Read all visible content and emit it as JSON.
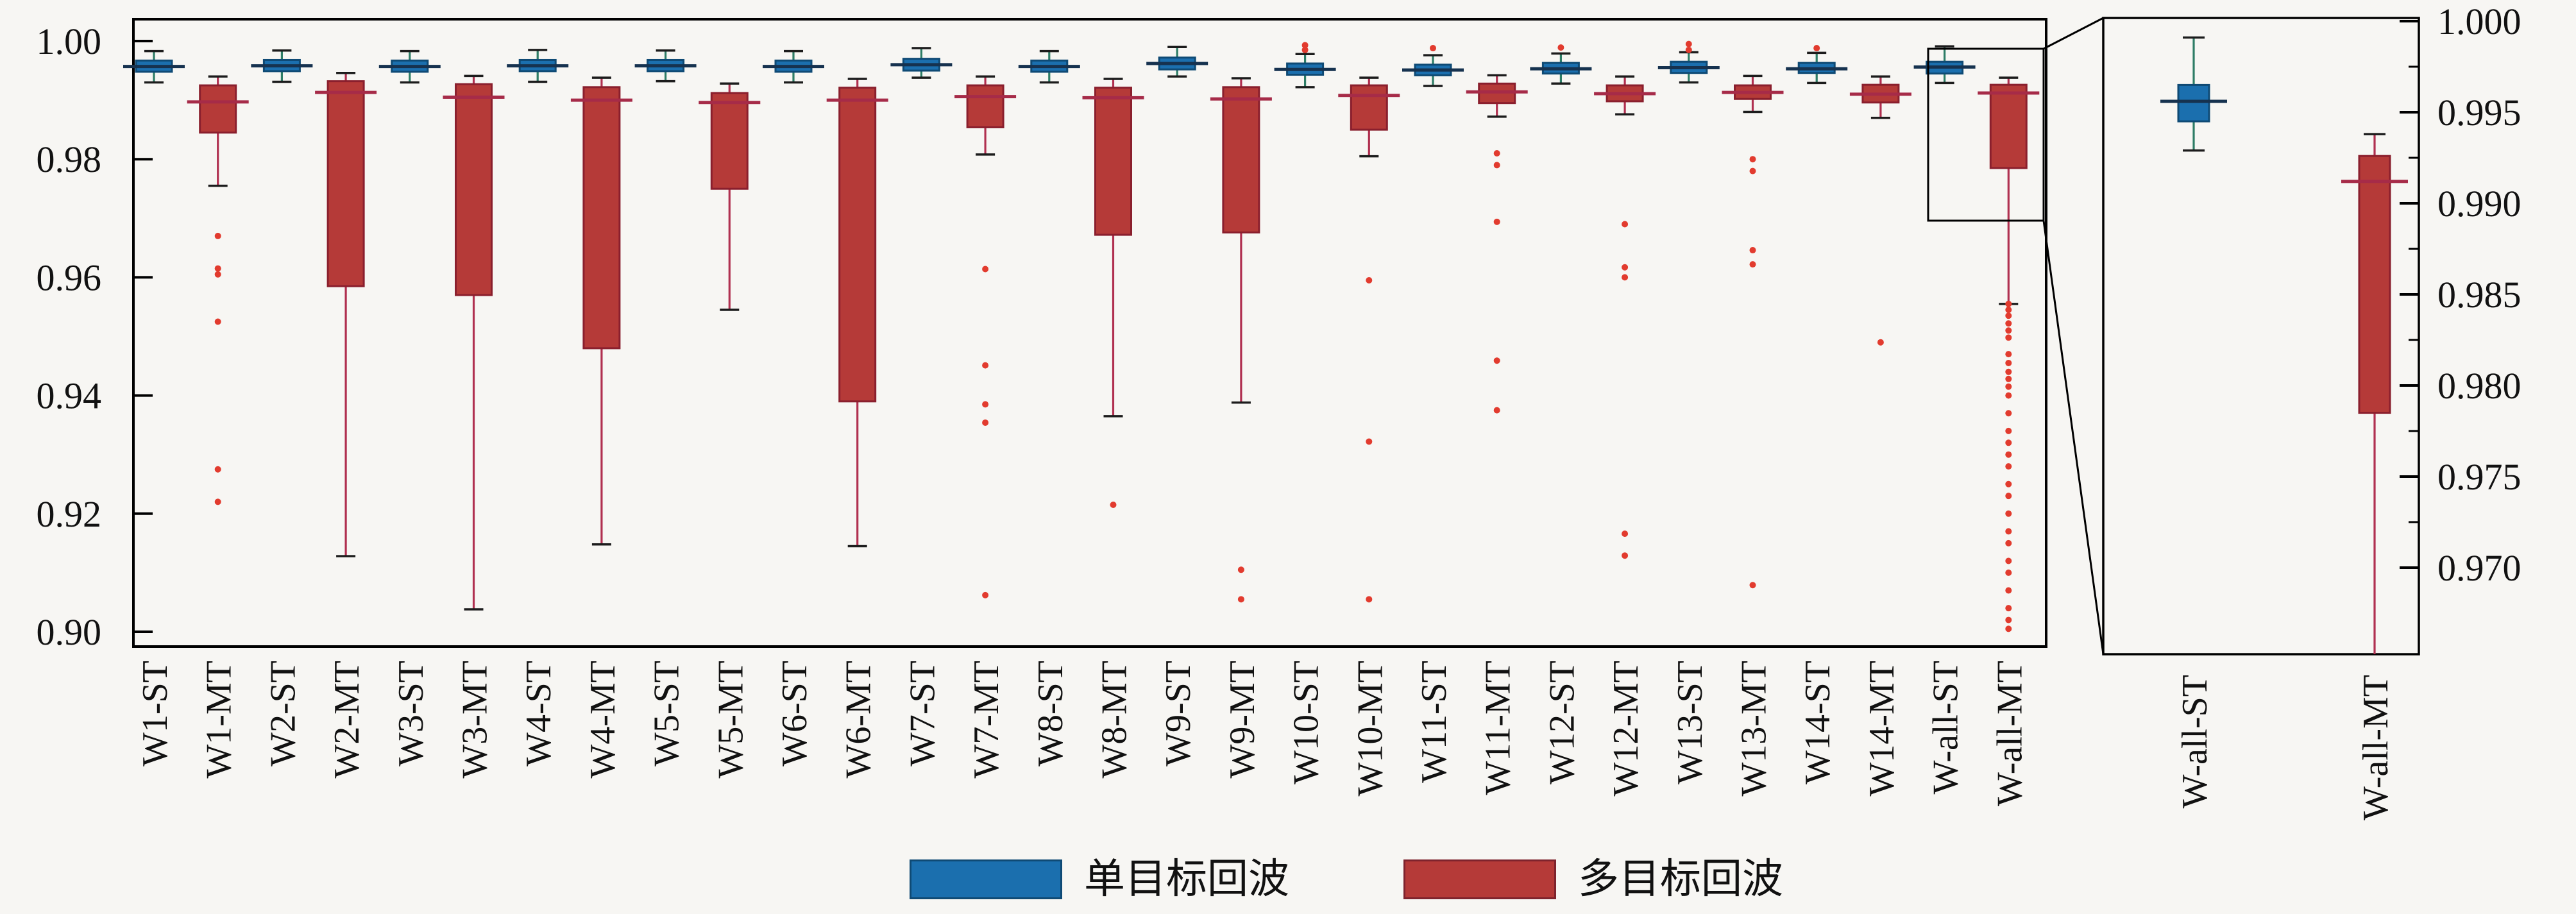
{
  "figure": {
    "background": "#f7f6f3",
    "frame_color": "#000000",
    "text_color": "#111111"
  },
  "legend": {
    "items": [
      {
        "id": "single-target",
        "label": "单目标回波",
        "fill": "#1b6fae",
        "edge": "#0f4a74"
      },
      {
        "id": "multi-target",
        "label": "多目标回波",
        "fill": "#b53a38",
        "edge": "#7e232d"
      }
    ]
  },
  "chart_data": {
    "type": "boxplot",
    "title": "",
    "xlabel": "",
    "ylabel": "",
    "grid": false,
    "legend_position": "bottom-center",
    "series_styles": {
      "ST": {
        "fill": "#1b6fae",
        "edge": "#0f4a74",
        "median": "#16324f",
        "whisker": "#2e7d66",
        "cap": "#1c1c1c",
        "flier": "#e23b2e"
      },
      "MT": {
        "fill": "#b53a38",
        "edge": "#8a1f2d",
        "median": "#a62b48",
        "whisker": "#b03050",
        "cap": "#1c1c1c",
        "flier": "#e23b2e"
      }
    },
    "main_axis": {
      "ylim": [
        0.8975,
        1.0037
      ],
      "yticks": [
        1.0,
        0.98,
        0.96,
        0.94,
        0.92,
        0.9
      ],
      "ytick_labels": [
        "1.00",
        "0.98",
        "0.96",
        "0.94",
        "0.92",
        "0.90"
      ],
      "categories": [
        "W1-ST",
        "W1-MT",
        "W2-ST",
        "W2-MT",
        "W3-ST",
        "W3-MT",
        "W4-ST",
        "W4-MT",
        "W5-ST",
        "W5-MT",
        "W6-ST",
        "W6-MT",
        "W7-ST",
        "W7-MT",
        "W8-ST",
        "W8-MT",
        "W9-ST",
        "W9-MT",
        "W10-ST",
        "W10-MT",
        "W11-ST",
        "W11-MT",
        "W12-ST",
        "W12-MT",
        "W13-ST",
        "W13-MT",
        "W14-ST",
        "W14-MT",
        "W-all-ST",
        "W-all-MT"
      ]
    },
    "boxes": [
      {
        "label": "W1-ST",
        "group": "ST",
        "whislo": 0.993,
        "q1": 0.9948,
        "med": 0.9957,
        "q3": 0.9967,
        "whishi": 0.9983,
        "fliers": []
      },
      {
        "label": "W1-MT",
        "group": "MT",
        "whislo": 0.9755,
        "q1": 0.9845,
        "med": 0.9897,
        "q3": 0.9925,
        "whishi": 0.994,
        "fliers": [
          0.967,
          0.9615,
          0.9605,
          0.9525,
          0.9275,
          0.922
        ]
      },
      {
        "label": "W2-ST",
        "group": "ST",
        "whislo": 0.9931,
        "q1": 0.9949,
        "med": 0.9958,
        "q3": 0.9968,
        "whishi": 0.9984,
        "fliers": []
      },
      {
        "label": "W2-MT",
        "group": "MT",
        "whislo": 0.9128,
        "q1": 0.9585,
        "med": 0.9913,
        "q3": 0.9932,
        "whishi": 0.9946,
        "fliers": []
      },
      {
        "label": "W3-ST",
        "group": "ST",
        "whislo": 0.993,
        "q1": 0.9948,
        "med": 0.9957,
        "q3": 0.9967,
        "whishi": 0.9983,
        "fliers": []
      },
      {
        "label": "W3-MT",
        "group": "MT",
        "whislo": 0.9038,
        "q1": 0.957,
        "med": 0.9905,
        "q3": 0.9927,
        "whishi": 0.9941,
        "fliers": []
      },
      {
        "label": "W4-ST",
        "group": "ST",
        "whislo": 0.9931,
        "q1": 0.9949,
        "med": 0.9958,
        "q3": 0.9968,
        "whishi": 0.9985,
        "fliers": []
      },
      {
        "label": "W4-MT",
        "group": "MT",
        "whislo": 0.9148,
        "q1": 0.948,
        "med": 0.99,
        "q3": 0.9922,
        "whishi": 0.9938,
        "fliers": []
      },
      {
        "label": "W5-ST",
        "group": "ST",
        "whislo": 0.9932,
        "q1": 0.9949,
        "med": 0.9958,
        "q3": 0.9968,
        "whishi": 0.9984,
        "fliers": []
      },
      {
        "label": "W5-MT",
        "group": "MT",
        "whislo": 0.9545,
        "q1": 0.975,
        "med": 0.9896,
        "q3": 0.9912,
        "whishi": 0.9928,
        "fliers": []
      },
      {
        "label": "W6-ST",
        "group": "ST",
        "whislo": 0.993,
        "q1": 0.9948,
        "med": 0.9957,
        "q3": 0.9967,
        "whishi": 0.9983,
        "fliers": []
      },
      {
        "label": "W6-MT",
        "group": "MT",
        "whislo": 0.9145,
        "q1": 0.939,
        "med": 0.99,
        "q3": 0.9921,
        "whishi": 0.9936,
        "fliers": []
      },
      {
        "label": "W7-ST",
        "group": "ST",
        "whislo": 0.9938,
        "q1": 0.995,
        "med": 0.996,
        "q3": 0.997,
        "whishi": 0.9988,
        "fliers": []
      },
      {
        "label": "W7-MT",
        "group": "MT",
        "whislo": 0.9808,
        "q1": 0.9854,
        "med": 0.9906,
        "q3": 0.9925,
        "whishi": 0.994,
        "fliers": [
          0.9614,
          0.9451,
          0.9385,
          0.9354,
          0.9062
        ]
      },
      {
        "label": "W8-ST",
        "group": "ST",
        "whislo": 0.993,
        "q1": 0.9948,
        "med": 0.9957,
        "q3": 0.9967,
        "whishi": 0.9983,
        "fliers": []
      },
      {
        "label": "W8-MT",
        "group": "MT",
        "whislo": 0.9365,
        "q1": 0.9672,
        "med": 0.9904,
        "q3": 0.9921,
        "whishi": 0.9936,
        "fliers": [
          0.9215
        ]
      },
      {
        "label": "W9-ST",
        "group": "ST",
        "whislo": 0.994,
        "q1": 0.9952,
        "med": 0.9962,
        "q3": 0.9972,
        "whishi": 0.999,
        "fliers": []
      },
      {
        "label": "W9-MT",
        "group": "MT",
        "whislo": 0.9388,
        "q1": 0.9676,
        "med": 0.9902,
        "q3": 0.9922,
        "whishi": 0.9937,
        "fliers": [
          0.9105,
          0.9055
        ]
      },
      {
        "label": "W10-ST",
        "group": "ST",
        "whislo": 0.9922,
        "q1": 0.9943,
        "med": 0.9952,
        "q3": 0.9962,
        "whishi": 0.9978,
        "fliers": [
          0.9985,
          0.9993
        ]
      },
      {
        "label": "W10-MT",
        "group": "MT",
        "whislo": 0.9805,
        "q1": 0.985,
        "med": 0.9908,
        "q3": 0.9925,
        "whishi": 0.9938,
        "fliers": [
          0.9595,
          0.9322,
          0.9055
        ]
      },
      {
        "label": "W11-ST",
        "group": "ST",
        "whislo": 0.9924,
        "q1": 0.9942,
        "med": 0.9951,
        "q3": 0.996,
        "whishi": 0.9976,
        "fliers": [
          0.9988
        ]
      },
      {
        "label": "W11-MT",
        "group": "MT",
        "whislo": 0.9872,
        "q1": 0.9895,
        "med": 0.9914,
        "q3": 0.9928,
        "whishi": 0.9942,
        "fliers": [
          0.981,
          0.979,
          0.9694,
          0.9459,
          0.9375
        ]
      },
      {
        "label": "W12-ST",
        "group": "ST",
        "whislo": 0.9928,
        "q1": 0.9945,
        "med": 0.9953,
        "q3": 0.9963,
        "whishi": 0.9979,
        "fliers": [
          0.9989
        ]
      },
      {
        "label": "W12-MT",
        "group": "MT",
        "whislo": 0.9876,
        "q1": 0.9898,
        "med": 0.9911,
        "q3": 0.9925,
        "whishi": 0.994,
        "fliers": [
          0.969,
          0.9617,
          0.96,
          0.9166,
          0.9129
        ]
      },
      {
        "label": "W13-ST",
        "group": "ST",
        "whislo": 0.993,
        "q1": 0.9946,
        "med": 0.9955,
        "q3": 0.9965,
        "whishi": 0.9981,
        "fliers": [
          0.9985,
          0.9995
        ]
      },
      {
        "label": "W13-MT",
        "group": "MT",
        "whislo": 0.988,
        "q1": 0.9902,
        "med": 0.9913,
        "q3": 0.9925,
        "whishi": 0.9941,
        "fliers": [
          0.98,
          0.978,
          0.9646,
          0.9622,
          0.9079
        ]
      },
      {
        "label": "W14-ST",
        "group": "ST",
        "whislo": 0.9929,
        "q1": 0.9946,
        "med": 0.9953,
        "q3": 0.9963,
        "whishi": 0.998,
        "fliers": [
          0.9988
        ]
      },
      {
        "label": "W14-MT",
        "group": "MT",
        "whislo": 0.987,
        "q1": 0.9896,
        "med": 0.991,
        "q3": 0.9926,
        "whishi": 0.994,
        "fliers": [
          0.949
        ]
      },
      {
        "label": "W-all-ST",
        "group": "ST",
        "whislo": 0.9929,
        "q1": 0.9945,
        "med": 0.9956,
        "q3": 0.9965,
        "whishi": 0.9991,
        "fliers": []
      },
      {
        "label": "W-all-MT",
        "group": "MT",
        "whislo": 0.9555,
        "q1": 0.9785,
        "med": 0.9912,
        "q3": 0.9926,
        "whishi": 0.9938,
        "fliers": [
          0.9555,
          0.9545,
          0.9535,
          0.9522,
          0.951,
          0.9498,
          0.947,
          0.9455,
          0.944,
          0.9428,
          0.9415,
          0.94,
          0.937,
          0.934,
          0.932,
          0.93,
          0.928,
          0.925,
          0.923,
          0.92,
          0.917,
          0.915,
          0.912,
          0.91,
          0.907,
          0.904,
          0.902,
          0.9005
        ]
      }
    ],
    "inset_axis": {
      "ylim": [
        0.96525,
        1.0002
      ],
      "yticks": [
        1.0,
        0.995,
        0.99,
        0.985,
        0.98,
        0.975,
        0.97
      ],
      "ytick_labels": [
        "1.000",
        "0.995",
        "0.990",
        "0.985",
        "0.980",
        "0.975",
        "0.970"
      ],
      "categories": [
        "W-all-ST",
        "W-all-MT"
      ],
      "zoom_indicator": true
    },
    "inset_boxes": [
      {
        "label": "W-all-ST",
        "group": "ST",
        "whislo": 0.9929,
        "q1": 0.9945,
        "med": 0.9956,
        "q3": 0.9965,
        "whishi": 0.9991,
        "fliers": []
      },
      {
        "label": "W-all-MT",
        "group": "MT",
        "whislo": 0.9555,
        "q1": 0.9785,
        "med": 0.9912,
        "q3": 0.9926,
        "whishi": 0.9938,
        "fliers": []
      }
    ]
  }
}
